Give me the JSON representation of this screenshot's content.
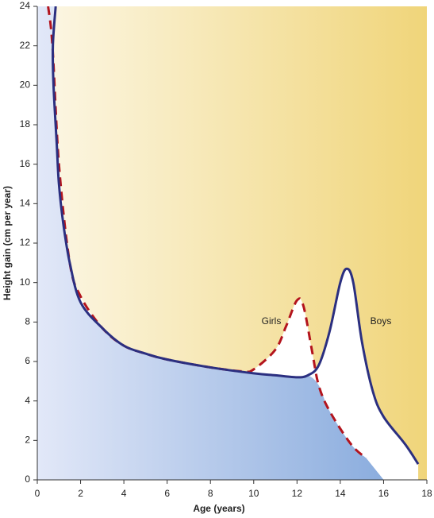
{
  "chart_data": {
    "type": "line",
    "xlabel": "Age (years)",
    "ylabel": "Height gain (cm per year)",
    "xlim": [
      0,
      18
    ],
    "ylim": [
      0,
      24
    ],
    "xticks": [
      0,
      2,
      4,
      6,
      8,
      10,
      12,
      14,
      16,
      18
    ],
    "yticks": [
      0,
      2,
      4,
      6,
      8,
      10,
      12,
      14,
      16,
      18,
      20,
      22,
      24
    ],
    "annotations": [
      "Girls",
      "Boys"
    ],
    "series": [
      {
        "name": "Girls",
        "color": "#b3141d",
        "dashed": true,
        "x": [
          0.5,
          0.7,
          1,
          1.5,
          2,
          3,
          4,
          5,
          6,
          8,
          9.5,
          10,
          11,
          11.5,
          12,
          12.3,
          12.7,
          13,
          13.5,
          14.5,
          15.2
        ],
        "values": [
          24,
          22,
          16,
          11,
          9.3,
          7.7,
          6.8,
          6.4,
          6.1,
          5.7,
          5.5,
          5.6,
          6.6,
          7.8,
          9.1,
          8.8,
          6.5,
          4.8,
          3.5,
          1.8,
          1.1
        ]
      },
      {
        "name": "Boys",
        "color": "#2b2f80",
        "dashed": false,
        "x": [
          0.85,
          0.72,
          0.75,
          0.9,
          1,
          1.2,
          1.5,
          2,
          3,
          4,
          5,
          6,
          8,
          10,
          11,
          12,
          12.5,
          13,
          13.5,
          14,
          14.3,
          14.6,
          15,
          15.5,
          16,
          17,
          17.6
        ],
        "values": [
          24,
          22,
          20,
          17,
          15,
          13,
          11,
          9,
          7.7,
          6.8,
          6.4,
          6.1,
          5.7,
          5.4,
          5.3,
          5.2,
          5.3,
          5.8,
          7.5,
          10,
          10.7,
          10,
          7,
          4.5,
          3.2,
          1.8,
          0.8
        ]
      }
    ]
  }
}
